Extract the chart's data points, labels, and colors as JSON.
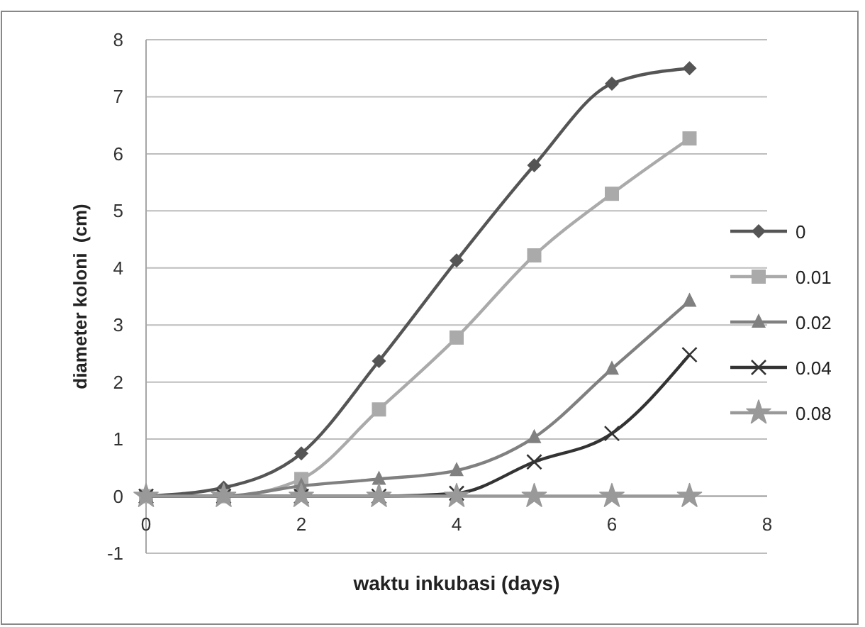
{
  "chart_data": {
    "type": "line",
    "xlabel": "waktu inkubasi (days)",
    "ylabel": "diameter koloni  (cm)",
    "x": [
      0,
      1,
      2,
      3,
      4,
      5,
      6,
      7
    ],
    "xlim": [
      0,
      8
    ],
    "xticks": [
      0,
      2,
      4,
      6,
      8
    ],
    "ylim": [
      -1,
      8
    ],
    "yticks": [
      -1,
      0,
      1,
      2,
      3,
      4,
      5,
      6,
      7,
      8
    ],
    "grid": "y",
    "legend": "right",
    "series": [
      {
        "name": "0",
        "color": "#555555",
        "marker": "diamond",
        "values": [
          0,
          0.15,
          0.75,
          2.37,
          4.13,
          5.8,
          7.23,
          7.5
        ]
      },
      {
        "name": "0.01",
        "color": "#aaaaaa",
        "marker": "square",
        "values": [
          0,
          0,
          0.3,
          1.52,
          2.78,
          4.22,
          5.3,
          6.27
        ]
      },
      {
        "name": "0.02",
        "color": "#808080",
        "marker": "triangle",
        "values": [
          0,
          0,
          0.18,
          0.3,
          0.45,
          1.03,
          2.23,
          3.42
        ]
      },
      {
        "name": "0.04",
        "color": "#333333",
        "marker": "cross",
        "values": [
          0,
          0,
          0,
          0,
          0.05,
          0.6,
          1.1,
          2.48
        ]
      },
      {
        "name": "0.08",
        "color": "#999999",
        "marker": "star",
        "values": [
          0,
          0,
          0,
          0,
          0,
          0,
          0,
          0
        ]
      }
    ]
  }
}
